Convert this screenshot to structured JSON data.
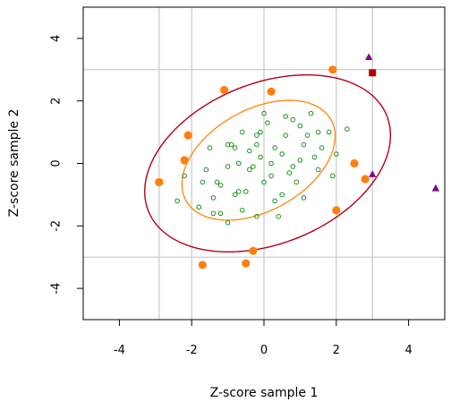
{
  "chart_data": {
    "type": "scatter",
    "title": "",
    "xlabel": "Z-score sample 1",
    "ylabel": "Z-score sample 2",
    "xlim": [
      -5,
      5
    ],
    "ylim": [
      -5,
      5
    ],
    "xticks": [
      -4,
      -2,
      0,
      2,
      4
    ],
    "yticks": [
      -4,
      -2,
      0,
      2,
      4
    ],
    "grid_lines_x": [
      -2.9,
      -2,
      0,
      2,
      3
    ],
    "grid_lines_y": [
      -3,
      3
    ],
    "colors": {
      "grid": "#c8c8c8",
      "inner_points": "#1f8f1f",
      "mid_points": "#ff7f0e",
      "ellipse_inner": "#ff8c1a",
      "ellipse_outer": "#b3001b",
      "outlier_triangles": "#7b0a84",
      "outlier_square": "#b30000"
    },
    "ellipses": [
      {
        "name": "inner",
        "center": [
          -0.15,
          0.1
        ],
        "rx": 2.4,
        "ry": 1.55,
        "angle_deg": 38
      },
      {
        "name": "outer",
        "center": [
          0.1,
          0.0
        ],
        "rx": 3.65,
        "ry": 2.5,
        "angle_deg": 30
      }
    ],
    "series": [
      {
        "marker": "open-circle",
        "color": "#1f8f1f",
        "points": [
          [
            -2.4,
            -1.2
          ],
          [
            -1.7,
            -0.6
          ],
          [
            -1.5,
            0.5
          ],
          [
            -1.4,
            -1.6
          ],
          [
            -1.3,
            -0.6
          ],
          [
            -1.2,
            -1.6
          ],
          [
            -1.0,
            -1.9
          ],
          [
            -1.0,
            -0.1
          ],
          [
            -0.9,
            0.6
          ],
          [
            -0.8,
            -1.0
          ],
          [
            -0.7,
            0.0
          ],
          [
            -0.6,
            1.0
          ],
          [
            -0.5,
            -0.9
          ],
          [
            -0.4,
            0.4
          ],
          [
            -0.3,
            -0.1
          ],
          [
            -0.2,
            -1.7
          ],
          [
            -0.2,
            0.9
          ],
          [
            -0.1,
            0.2
          ],
          [
            0.0,
            -0.6
          ],
          [
            0.1,
            1.3
          ],
          [
            0.2,
            -0.4
          ],
          [
            0.3,
            0.5
          ],
          [
            0.5,
            -1.0
          ],
          [
            0.6,
            0.9
          ],
          [
            0.7,
            -0.3
          ],
          [
            0.8,
            1.4
          ],
          [
            1.0,
            0.1
          ],
          [
            1.1,
            -1.1
          ],
          [
            1.2,
            0.9
          ],
          [
            1.3,
            1.6
          ],
          [
            1.5,
            -0.2
          ],
          [
            1.6,
            0.5
          ],
          [
            1.8,
            1.0
          ],
          [
            2.0,
            0.3
          ],
          [
            2.3,
            1.1
          ],
          [
            -1.2,
            -0.7
          ],
          [
            -2.2,
            -0.4
          ],
          [
            -0.8,
            0.5
          ],
          [
            0.4,
            -1.7
          ],
          [
            -0.1,
            1.0
          ],
          [
            0.9,
            -0.6
          ],
          [
            1.4,
            0.2
          ],
          [
            -1.8,
            -1.4
          ],
          [
            -0.6,
            -1.5
          ],
          [
            0.2,
            0.0
          ],
          [
            0.6,
            1.5
          ],
          [
            1.1,
            0.6
          ],
          [
            -0.4,
            -0.2
          ],
          [
            -1.0,
            0.6
          ],
          [
            0.0,
            1.6
          ],
          [
            1.5,
            1.0
          ],
          [
            -0.7,
            -0.9
          ],
          [
            0.3,
            -1.2
          ],
          [
            1.9,
            -0.4
          ],
          [
            -1.4,
            -1.1
          ],
          [
            0.8,
            -0.1
          ],
          [
            -0.2,
            0.6
          ],
          [
            0.5,
            0.3
          ],
          [
            -1.6,
            -0.2
          ],
          [
            1.0,
            1.2
          ]
        ]
      },
      {
        "marker": "filled-circle",
        "color": "#ff7f0e",
        "points": [
          [
            -2.9,
            -0.6
          ],
          [
            -2.2,
            0.1
          ],
          [
            -2.1,
            0.9
          ],
          [
            -1.7,
            -3.25
          ],
          [
            -1.1,
            2.35
          ],
          [
            -0.5,
            -3.2
          ],
          [
            -0.3,
            -2.8
          ],
          [
            0.2,
            2.3
          ],
          [
            1.9,
            3.0
          ],
          [
            2.0,
            -1.5
          ],
          [
            2.5,
            0.0
          ],
          [
            2.8,
            -0.5
          ]
        ]
      },
      {
        "marker": "filled-triangle",
        "color": "#7b0a84",
        "points": [
          [
            2.9,
            3.4
          ],
          [
            3.0,
            -0.35
          ],
          [
            4.75,
            -0.8
          ]
        ]
      },
      {
        "marker": "filled-square",
        "color": "#b30000",
        "points": [
          [
            3.0,
            2.9
          ]
        ]
      }
    ]
  }
}
